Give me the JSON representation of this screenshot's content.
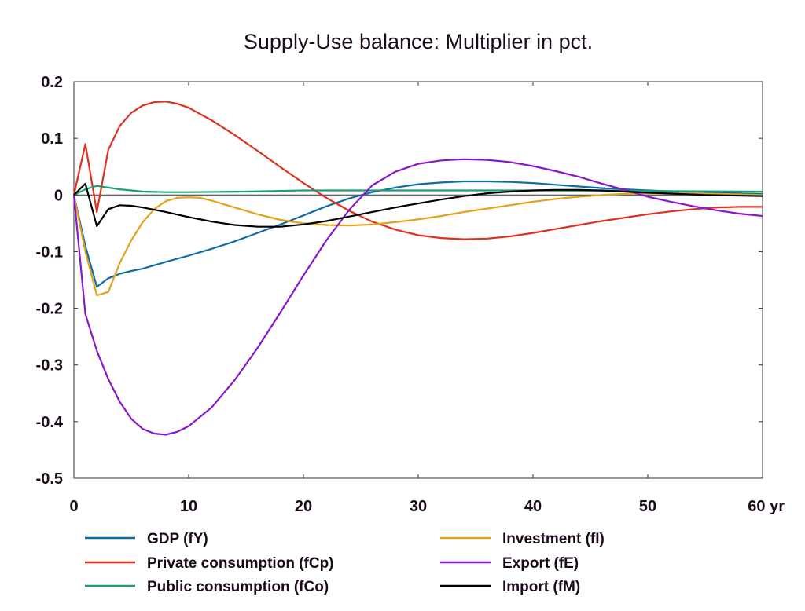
{
  "chart_data": {
    "type": "line",
    "title": "Supply-Use balance: Multiplier in pct.",
    "xlabel": "",
    "ylabel": "",
    "xlim": [
      0,
      60
    ],
    "ylim": [
      -0.5,
      0.2
    ],
    "x_ticks": [
      0,
      10,
      20,
      30,
      40,
      50,
      60
    ],
    "x_tick_labels": [
      "0",
      "10",
      "20",
      "30",
      "40",
      "50",
      "60 yr"
    ],
    "y_ticks": [
      0.2,
      0.1,
      0,
      -0.1,
      -0.2,
      -0.3,
      -0.4,
      -0.5
    ],
    "y_tick_labels": [
      "0.2",
      "0.1",
      "0",
      "-0.1",
      "-0.2",
      "-0.3",
      "-0.4",
      "-0.5"
    ],
    "zero_line": true,
    "grid": false,
    "legend_position": "bottom",
    "series": [
      {
        "name": "GDP (fY)",
        "color": "#0e6ea5",
        "x": [
          0,
          1,
          2,
          3,
          4,
          5,
          6,
          8,
          10,
          12,
          14,
          16,
          18,
          20,
          22,
          24,
          26,
          28,
          30,
          32,
          34,
          36,
          38,
          40,
          42,
          44,
          46,
          48,
          50,
          55,
          60
        ],
        "y": [
          0,
          -0.09,
          -0.162,
          -0.147,
          -0.139,
          -0.134,
          -0.13,
          -0.118,
          -0.107,
          -0.095,
          -0.082,
          -0.067,
          -0.052,
          -0.036,
          -0.02,
          -0.006,
          0.005,
          0.013,
          0.019,
          0.022,
          0.024,
          0.024,
          0.023,
          0.021,
          0.018,
          0.015,
          0.012,
          0.01,
          0.008,
          0.004,
          0.002
        ]
      },
      {
        "name": "Private consumption (fCp)",
        "color": "#e0301e",
        "x": [
          0,
          1,
          2,
          3,
          4,
          5,
          6,
          7,
          8,
          9,
          10,
          12,
          14,
          16,
          18,
          20,
          22,
          24,
          26,
          28,
          30,
          32,
          34,
          36,
          38,
          40,
          42,
          44,
          46,
          48,
          50,
          52,
          54,
          56,
          58,
          60
        ],
        "y": [
          0,
          0.09,
          -0.03,
          0.08,
          0.122,
          0.145,
          0.158,
          0.164,
          0.165,
          0.161,
          0.154,
          0.132,
          0.106,
          0.078,
          0.049,
          0.021,
          -0.005,
          -0.028,
          -0.047,
          -0.061,
          -0.071,
          -0.076,
          -0.078,
          -0.077,
          -0.073,
          -0.067,
          -0.06,
          -0.053,
          -0.046,
          -0.04,
          -0.034,
          -0.029,
          -0.025,
          -0.022,
          -0.021,
          -0.021
        ]
      },
      {
        "name": "Public consumption (fCo)",
        "color": "#1a9e74",
        "x": [
          0,
          1,
          2,
          3,
          4,
          5,
          6,
          8,
          10,
          15,
          20,
          30,
          40,
          50,
          60
        ],
        "y": [
          0,
          0.01,
          0.016,
          0.013,
          0.01,
          0.008,
          0.006,
          0.005,
          0.005,
          0.006,
          0.008,
          0.008,
          0.008,
          0.007,
          0.006
        ]
      },
      {
        "name": "Investment (fI)",
        "color": "#e3a21a",
        "x": [
          0,
          1,
          2,
          3,
          4,
          5,
          6,
          7,
          8,
          9,
          10,
          11,
          12,
          14,
          16,
          18,
          20,
          22,
          24,
          26,
          28,
          30,
          32,
          34,
          36,
          38,
          40,
          42,
          44,
          46,
          48,
          50,
          52,
          54,
          56,
          58,
          60
        ],
        "y": [
          0,
          -0.1,
          -0.177,
          -0.171,
          -0.12,
          -0.08,
          -0.048,
          -0.025,
          -0.011,
          -0.005,
          -0.004,
          -0.005,
          -0.01,
          -0.022,
          -0.034,
          -0.044,
          -0.05,
          -0.053,
          -0.054,
          -0.052,
          -0.048,
          -0.043,
          -0.037,
          -0.03,
          -0.024,
          -0.018,
          -0.012,
          -0.007,
          -0.003,
          0,
          0.002,
          0.003,
          0.003,
          0.003,
          0.002,
          0.001,
          0
        ]
      },
      {
        "name": "Export (fE)",
        "color": "#8a17c9",
        "x": [
          0,
          1,
          2,
          3,
          4,
          5,
          6,
          7,
          8,
          9,
          10,
          12,
          14,
          16,
          18,
          20,
          22,
          24,
          26,
          28,
          30,
          32,
          34,
          36,
          38,
          40,
          42,
          44,
          46,
          48,
          50,
          52,
          54,
          56,
          58,
          60
        ],
        "y": [
          0,
          -0.21,
          -0.275,
          -0.325,
          -0.365,
          -0.395,
          -0.413,
          -0.421,
          -0.423,
          -0.418,
          -0.408,
          -0.375,
          -0.327,
          -0.27,
          -0.207,
          -0.142,
          -0.08,
          -0.026,
          0.017,
          0.041,
          0.055,
          0.061,
          0.063,
          0.062,
          0.058,
          0.051,
          0.042,
          0.032,
          0.02,
          0.009,
          -0.003,
          -0.012,
          -0.02,
          -0.027,
          -0.033,
          -0.037
        ]
      },
      {
        "name": "Import (fM)",
        "color": "#000000",
        "x": [
          0,
          1,
          2,
          3,
          4,
          5,
          6,
          8,
          10,
          12,
          14,
          16,
          18,
          20,
          22,
          24,
          26,
          28,
          30,
          32,
          34,
          36,
          38,
          40,
          42,
          44,
          46,
          48,
          50,
          55,
          60
        ],
        "y": [
          0,
          0.02,
          -0.055,
          -0.025,
          -0.018,
          -0.019,
          -0.022,
          -0.03,
          -0.039,
          -0.047,
          -0.053,
          -0.056,
          -0.056,
          -0.052,
          -0.046,
          -0.038,
          -0.03,
          -0.022,
          -0.015,
          -0.008,
          -0.002,
          0.003,
          0.006,
          0.008,
          0.009,
          0.009,
          0.008,
          0.006,
          0.004,
          0,
          -0.002
        ]
      }
    ]
  }
}
